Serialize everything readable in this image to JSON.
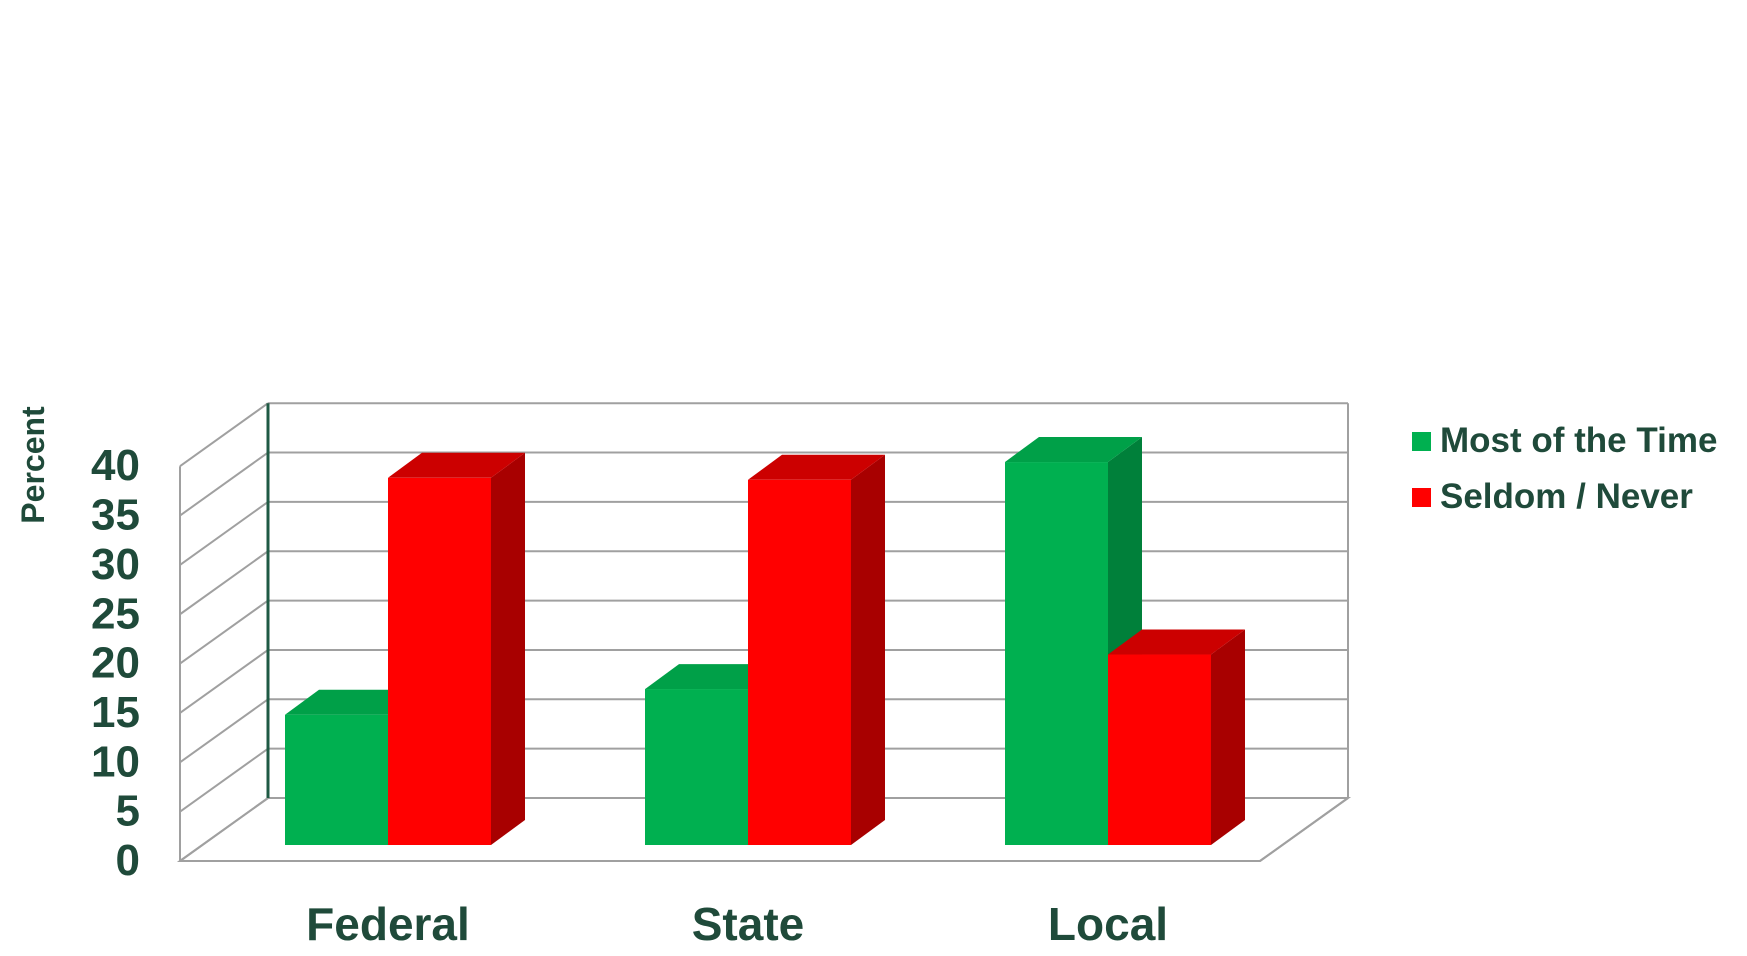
{
  "chart_data": {
    "type": "bar",
    "style": "3d-clustered",
    "title": "",
    "xlabel": "",
    "ylabel": "Percent",
    "ylim": [
      0,
      40
    ],
    "yticks": [
      0,
      5,
      10,
      15,
      20,
      25,
      30,
      35,
      40
    ],
    "grid": true,
    "legend_position": "right",
    "categories": [
      "Federal",
      "State",
      "Local"
    ],
    "series": [
      {
        "name": "Most of the Time",
        "values": [
          13.2,
          15.8,
          38.8
        ],
        "color": "#00b050",
        "side_color": "#00803a",
        "top_color": "#00a048"
      },
      {
        "name": "Seldom / Never",
        "values": [
          37.2,
          37.0,
          19.3
        ],
        "color": "#ff0000",
        "side_color": "#a80000",
        "top_color": "#cc0000"
      }
    ],
    "text_color": "#1f4a3a",
    "axis_color": "#1f5a44",
    "grid_color": "#a0a0a0"
  }
}
